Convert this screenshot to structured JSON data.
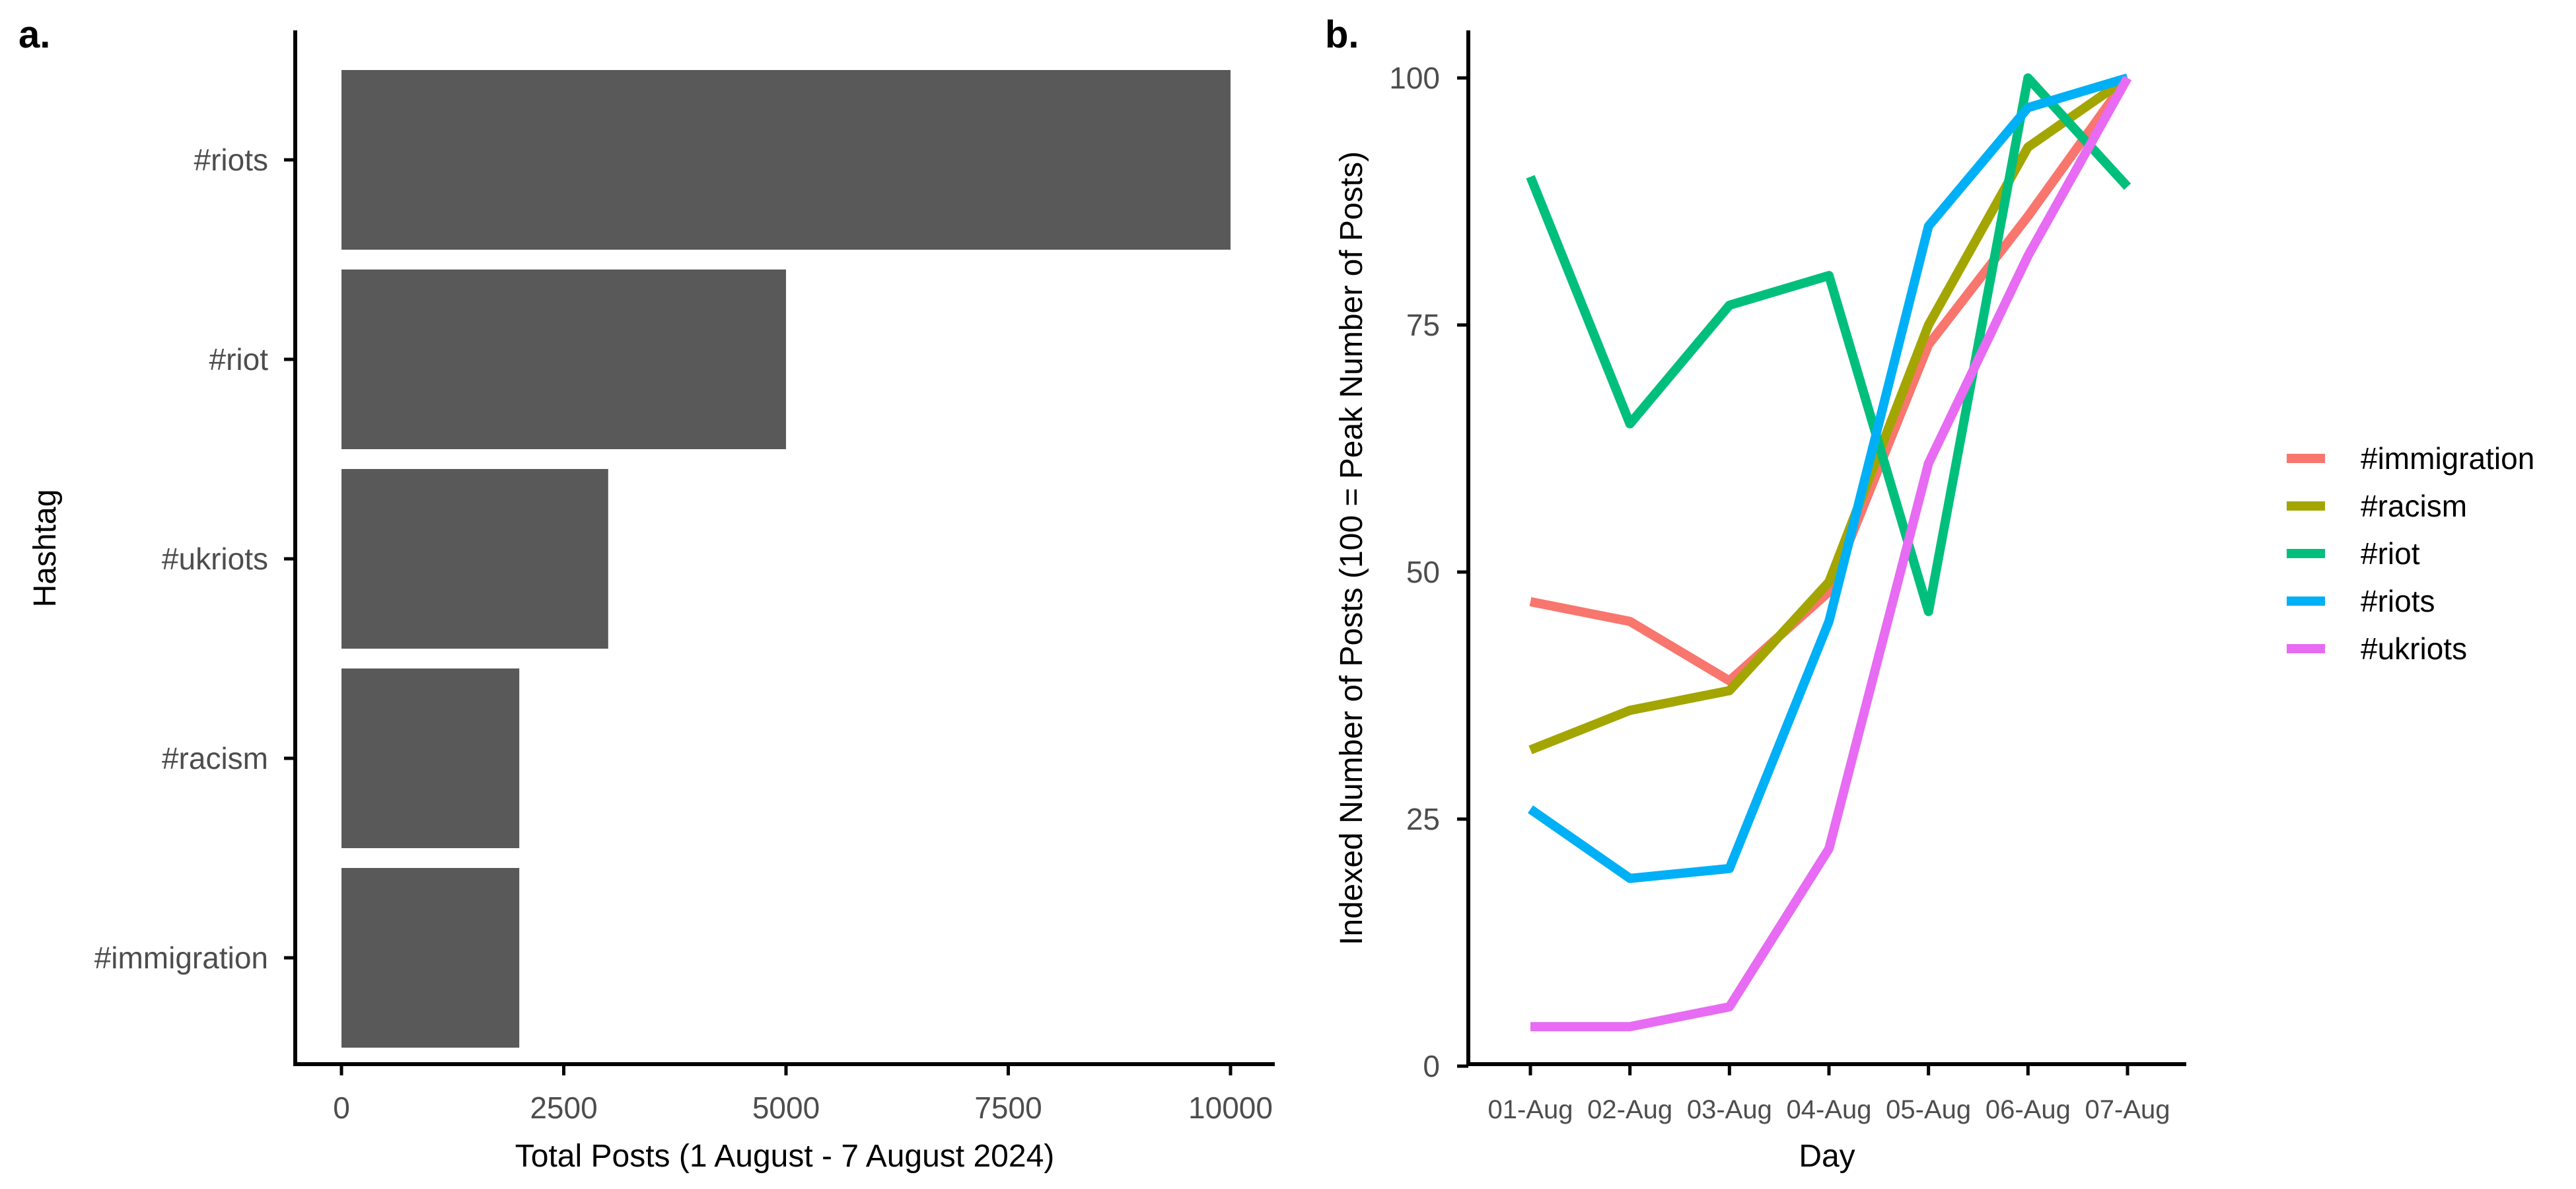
{
  "chart_data": [
    {
      "type": "bar",
      "panel_label": "a.",
      "orientation": "horizontal",
      "categories": [
        "#riots",
        "#riot",
        "#ukriots",
        "#racism",
        "#immigration"
      ],
      "values": [
        10000,
        5000,
        3000,
        2000,
        2000
      ],
      "bar_color": "#595959",
      "xlabel": "Total Posts (1 August - 7 August 2024)",
      "ylabel": "Hashtag",
      "xlim": [
        0,
        10500
      ],
      "xticks": [
        0,
        2500,
        5000,
        7500,
        10000
      ],
      "xtick_labels": [
        "0",
        "2500",
        "5000",
        "7500",
        "10000"
      ],
      "grid": false
    },
    {
      "type": "line",
      "panel_label": "b.",
      "x": [
        "01-Aug",
        "02-Aug",
        "03-Aug",
        "04-Aug",
        "05-Aug",
        "06-Aug",
        "07-Aug"
      ],
      "series": [
        {
          "name": "#immigration",
          "color": "#F8766D",
          "values": [
            47,
            45,
            39,
            48,
            73,
            86,
            100
          ]
        },
        {
          "name": "#racism",
          "color": "#A3A500",
          "values": [
            32,
            36,
            38,
            49,
            75,
            93,
            100
          ]
        },
        {
          "name": "#riot",
          "color": "#00BF7D",
          "values": [
            90,
            65,
            77,
            80,
            46,
            100,
            89
          ]
        },
        {
          "name": "#riots",
          "color": "#00B0F6",
          "values": [
            26,
            19,
            20,
            45,
            85,
            97,
            100
          ]
        },
        {
          "name": "#ukriots",
          "color": "#E76BF3",
          "values": [
            4,
            4,
            6,
            22,
            61,
            82,
            100
          ]
        }
      ],
      "xlabel": "Day",
      "ylabel": "Indexed Number of Posts (100 = Peak Number of Posts)",
      "ylim": [
        0,
        104
      ],
      "yticks": [
        0,
        25,
        50,
        75,
        100
      ],
      "ytick_labels": [
        "0",
        "25",
        "50",
        "75",
        "100"
      ],
      "legend_position": "right",
      "grid": false
    }
  ]
}
